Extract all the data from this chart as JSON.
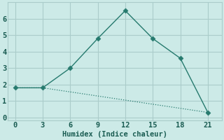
{
  "xlabel": "Humidex (Indice chaleur)",
  "bg_color": "#cceae7",
  "grid_color": "#aaccca",
  "line_color": "#267a6e",
  "line1_x": [
    0,
    3,
    6,
    9,
    12,
    15,
    18,
    21
  ],
  "line1_y": [
    1.8,
    1.8,
    3.0,
    4.8,
    6.5,
    4.8,
    3.6,
    0.3
  ],
  "line2_x": [
    0,
    3,
    21
  ],
  "line2_y": [
    1.8,
    1.8,
    0.3
  ],
  "xlim": [
    -0.8,
    22.5
  ],
  "ylim": [
    -0.2,
    7.0
  ],
  "xticks": [
    0,
    3,
    6,
    9,
    12,
    15,
    18,
    21
  ],
  "yticks": [
    0,
    1,
    2,
    3,
    4,
    5,
    6
  ],
  "font_color": "#1a5c52",
  "markersize": 3.5,
  "xlabel_fontsize": 7.5,
  "tick_fontsize": 7.5
}
